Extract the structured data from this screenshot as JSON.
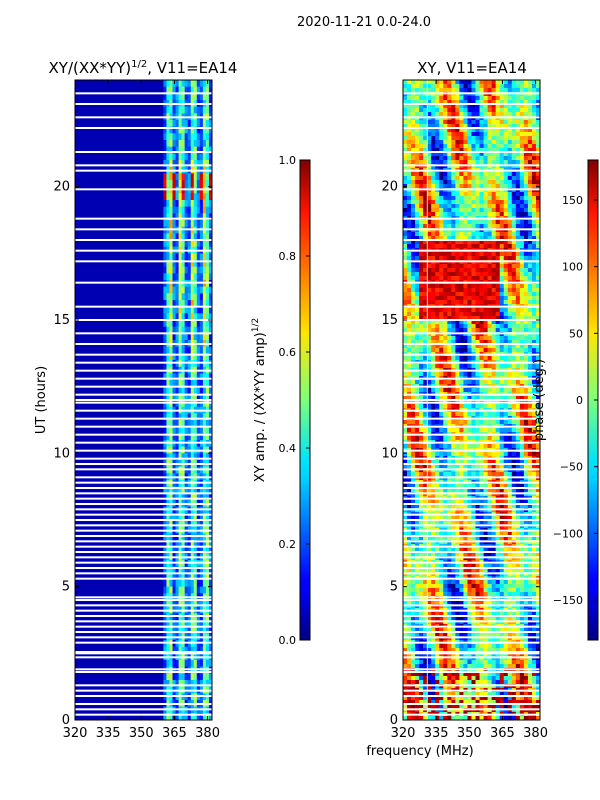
{
  "suptitle": "2020-11-21 0.0-24.0",
  "xlabel": "frequency (MHz)",
  "chart_data": [
    {
      "type": "heatmap",
      "title_main": "XY/(XX*YY)",
      "title_exp": "1/2",
      "title_tail": ", V11=EA14",
      "ylabel": "UT (hours)",
      "xlim": [
        320,
        382
      ],
      "ylim": [
        0,
        24
      ],
      "xticks": [
        "320",
        "335",
        "350",
        "365",
        "380"
      ],
      "xtick_values": [
        320,
        335,
        350,
        365,
        380
      ],
      "yticks": [
        "0",
        "5",
        "10",
        "15",
        "20"
      ],
      "ytick_values": [
        0,
        5,
        10,
        15,
        20
      ],
      "colorbar": {
        "label_main": "XY amp. / (XX*YY amp)",
        "label_exp": "1/2",
        "range": [
          0.0,
          1.0
        ],
        "ticks": [
          "0.0",
          "0.2",
          "0.4",
          "0.6",
          "0.8",
          "1.0"
        ],
        "tick_values": [
          0.0,
          0.2,
          0.4,
          0.6,
          0.8,
          1.0
        ]
      },
      "description_data": {
        "quiet_band_mhz": [
          320,
          360
        ],
        "quiet_value": 0.05,
        "active_band_mhz": [
          360,
          382
        ],
        "active_typical_value": 0.45,
        "peak_value": 0.95,
        "peak_hours": [
          19.5,
          20.5
        ]
      }
    },
    {
      "type": "heatmap",
      "title_main": "XY, V11=EA14",
      "xlim": [
        320,
        382
      ],
      "ylim": [
        0,
        24
      ],
      "xticks": [
        "320",
        "335",
        "350",
        "365",
        "380"
      ],
      "xtick_values": [
        320,
        335,
        350,
        365,
        380
      ],
      "yticks": [
        "0",
        "5",
        "10",
        "15",
        "20"
      ],
      "ytick_values": [
        0,
        5,
        10,
        15,
        20
      ],
      "colorbar": {
        "label_main": "phase (deg.)",
        "range": [
          -180,
          180
        ],
        "ticks": [
          "−150",
          "−100",
          "−50",
          "0",
          "50",
          "100",
          "150"
        ],
        "tick_values": [
          -150,
          -100,
          -50,
          0,
          50,
          100,
          150
        ]
      }
    }
  ],
  "flagged_hours": [
    0.2,
    0.4,
    0.6,
    0.9,
    1.1,
    1.3,
    1.8,
    1.9,
    2.35,
    2.5,
    2.55,
    2.9,
    3.1,
    3.3,
    3.5,
    3.7,
    3.9,
    4.1,
    4.3,
    4.5,
    4.6,
    5.3,
    5.5,
    5.7,
    5.9,
    6.1,
    6.3,
    6.5,
    6.7,
    6.9,
    7.1,
    7.3,
    7.5,
    7.7,
    7.9,
    8.1,
    8.3,
    8.5,
    8.7,
    8.9,
    9.1,
    9.4,
    9.6,
    9.8,
    10.1,
    10.4,
    10.7,
    11.0,
    11.3,
    11.6,
    11.9,
    12.0,
    12.2,
    12.5,
    12.8,
    13.1,
    13.4,
    13.7,
    14.1,
    14.5,
    15.0,
    15.5,
    16.4,
    17.2,
    17.6,
    18.0,
    18.4,
    18.8,
    19.9,
    20.6,
    20.8,
    21.3,
    22.2,
    22.6,
    23.1,
    23.5
  ]
}
